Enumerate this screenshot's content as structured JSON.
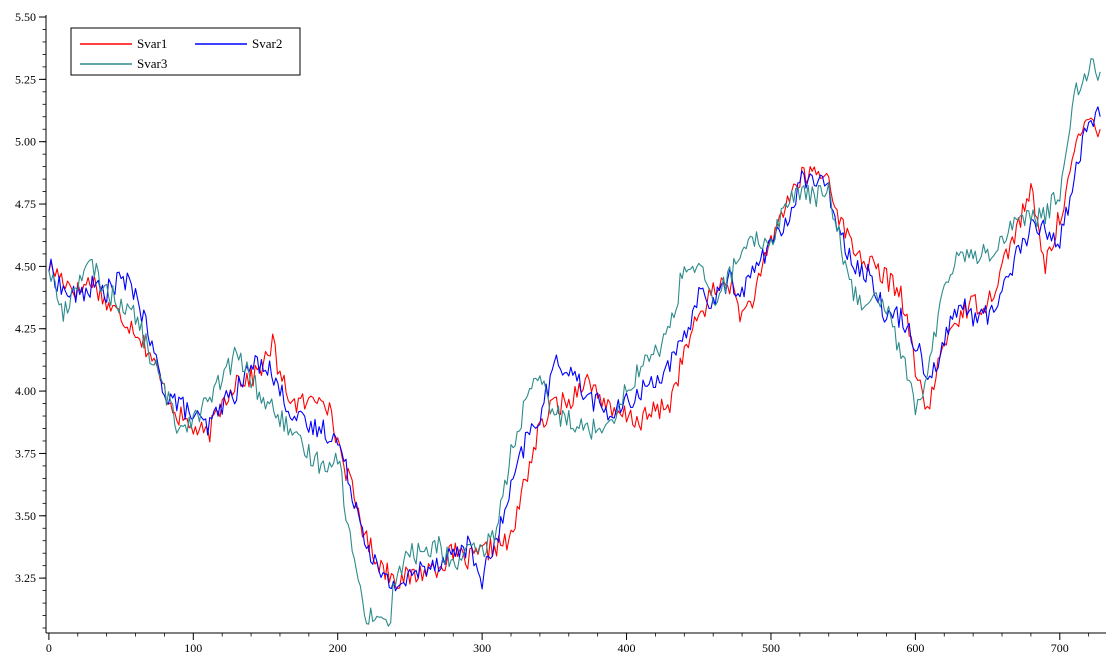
{
  "chart_data": {
    "type": "line",
    "title": "",
    "xlabel": "",
    "ylabel": "",
    "xlim": [
      -2,
      732
    ],
    "ylim": [
      3.03,
      5.5
    ],
    "x_ticks": [
      0,
      100,
      200,
      300,
      400,
      500,
      600,
      700
    ],
    "x_tick_labels": [
      "0",
      "100",
      "200",
      "300",
      "400",
      "500",
      "600",
      "700"
    ],
    "y_ticks": [
      3.25,
      3.5,
      3.75,
      4.0,
      4.25,
      4.5,
      4.75,
      5.0,
      5.25,
      5.5
    ],
    "y_tick_labels": [
      "3.25",
      "3.50",
      "3.75",
      "4.00",
      "4.25",
      "4.50",
      "4.75",
      "5.00",
      "5.25",
      "5.50"
    ],
    "grid": false,
    "legend": "top-left",
    "series": [
      {
        "name": "Svar1",
        "color": "#ff0000",
        "x": [
          0,
          10,
          20,
          30,
          40,
          50,
          60,
          70,
          80,
          90,
          100,
          110,
          120,
          130,
          140,
          150,
          155,
          160,
          170,
          180,
          190,
          200,
          210,
          220,
          230,
          240,
          250,
          260,
          270,
          280,
          290,
          300,
          310,
          320,
          330,
          340,
          350,
          360,
          370,
          380,
          390,
          400,
          410,
          420,
          430,
          440,
          450,
          460,
          470,
          480,
          490,
          500,
          510,
          520,
          530,
          540,
          550,
          560,
          570,
          580,
          590,
          600,
          605,
          610,
          620,
          630,
          640,
          650,
          660,
          670,
          680,
          690,
          700,
          710,
          720,
          728
        ],
        "values": [
          4.5,
          4.45,
          4.4,
          4.45,
          4.35,
          4.3,
          4.25,
          4.15,
          4.0,
          3.9,
          3.85,
          3.82,
          3.95,
          4.05,
          4.05,
          4.12,
          4.2,
          4.05,
          3.95,
          3.95,
          4.0,
          3.8,
          3.6,
          3.4,
          3.3,
          3.25,
          3.25,
          3.28,
          3.3,
          3.35,
          3.32,
          3.35,
          3.38,
          3.4,
          3.65,
          3.85,
          3.95,
          3.95,
          4.05,
          4.0,
          3.9,
          3.9,
          3.88,
          3.92,
          3.95,
          4.15,
          4.3,
          4.4,
          4.45,
          4.3,
          4.4,
          4.6,
          4.75,
          4.85,
          4.88,
          4.85,
          4.65,
          4.55,
          4.5,
          4.45,
          4.4,
          4.1,
          3.95,
          3.95,
          4.2,
          4.3,
          4.35,
          4.35,
          4.5,
          4.65,
          4.8,
          4.5,
          4.7,
          4.95,
          5.1,
          5.05
        ]
      },
      {
        "name": "Svar2",
        "color": "#0000ff",
        "x": [
          0,
          10,
          20,
          30,
          40,
          50,
          60,
          70,
          80,
          90,
          100,
          110,
          120,
          130,
          140,
          150,
          160,
          170,
          180,
          190,
          200,
          210,
          220,
          230,
          240,
          250,
          260,
          270,
          280,
          290,
          300,
          310,
          320,
          330,
          340,
          350,
          360,
          370,
          380,
          390,
          400,
          410,
          420,
          430,
          440,
          450,
          460,
          470,
          480,
          490,
          500,
          510,
          520,
          530,
          540,
          550,
          560,
          570,
          580,
          590,
          600,
          610,
          620,
          630,
          640,
          650,
          660,
          670,
          680,
          690,
          700,
          710,
          720,
          728
        ],
        "values": [
          4.5,
          4.4,
          4.38,
          4.42,
          4.4,
          4.45,
          4.4,
          4.2,
          4.0,
          3.95,
          3.9,
          3.85,
          3.95,
          4.0,
          4.1,
          4.12,
          4.0,
          3.9,
          3.85,
          3.85,
          3.8,
          3.6,
          3.4,
          3.25,
          3.22,
          3.25,
          3.3,
          3.32,
          3.35,
          3.38,
          3.25,
          3.4,
          3.6,
          3.8,
          3.9,
          4.1,
          4.1,
          4.0,
          3.95,
          3.9,
          3.95,
          4.0,
          4.05,
          4.1,
          4.2,
          4.4,
          4.35,
          4.45,
          4.4,
          4.5,
          4.6,
          4.65,
          4.85,
          4.85,
          4.8,
          4.6,
          4.5,
          4.45,
          4.3,
          4.3,
          4.2,
          4.05,
          4.2,
          4.35,
          4.3,
          4.3,
          4.4,
          4.55,
          4.65,
          4.65,
          4.6,
          4.85,
          5.1,
          5.1
        ]
      },
      {
        "name": "Svar3",
        "color": "#2e8b8b",
        "x": [
          0,
          10,
          20,
          30,
          40,
          50,
          60,
          70,
          80,
          90,
          100,
          110,
          120,
          130,
          140,
          150,
          160,
          170,
          180,
          190,
          200,
          210,
          220,
          230,
          235,
          240,
          250,
          260,
          270,
          280,
          290,
          300,
          310,
          320,
          330,
          340,
          350,
          360,
          370,
          380,
          390,
          400,
          410,
          420,
          430,
          440,
          450,
          460,
          470,
          480,
          490,
          500,
          510,
          520,
          530,
          540,
          550,
          560,
          570,
          580,
          590,
          600,
          605,
          610,
          620,
          630,
          640,
          650,
          660,
          670,
          680,
          690,
          700,
          710,
          720,
          728
        ],
        "values": [
          4.5,
          4.3,
          4.45,
          4.5,
          4.4,
          4.35,
          4.3,
          4.15,
          4.0,
          3.85,
          3.9,
          3.95,
          4.05,
          4.15,
          4.05,
          3.95,
          3.9,
          3.8,
          3.75,
          3.7,
          3.75,
          3.35,
          3.1,
          3.1,
          3.05,
          3.25,
          3.35,
          3.35,
          3.38,
          3.3,
          3.35,
          3.35,
          3.45,
          3.75,
          3.95,
          4.05,
          3.9,
          3.9,
          3.85,
          3.85,
          3.9,
          4.0,
          4.1,
          4.15,
          4.25,
          4.5,
          4.5,
          4.35,
          4.45,
          4.55,
          4.6,
          4.6,
          4.75,
          4.8,
          4.78,
          4.8,
          4.55,
          4.35,
          4.4,
          4.35,
          4.15,
          3.95,
          3.95,
          4.1,
          4.45,
          4.55,
          4.55,
          4.55,
          4.6,
          4.7,
          4.7,
          4.7,
          4.8,
          5.2,
          5.3,
          5.28
        ]
      }
    ]
  }
}
